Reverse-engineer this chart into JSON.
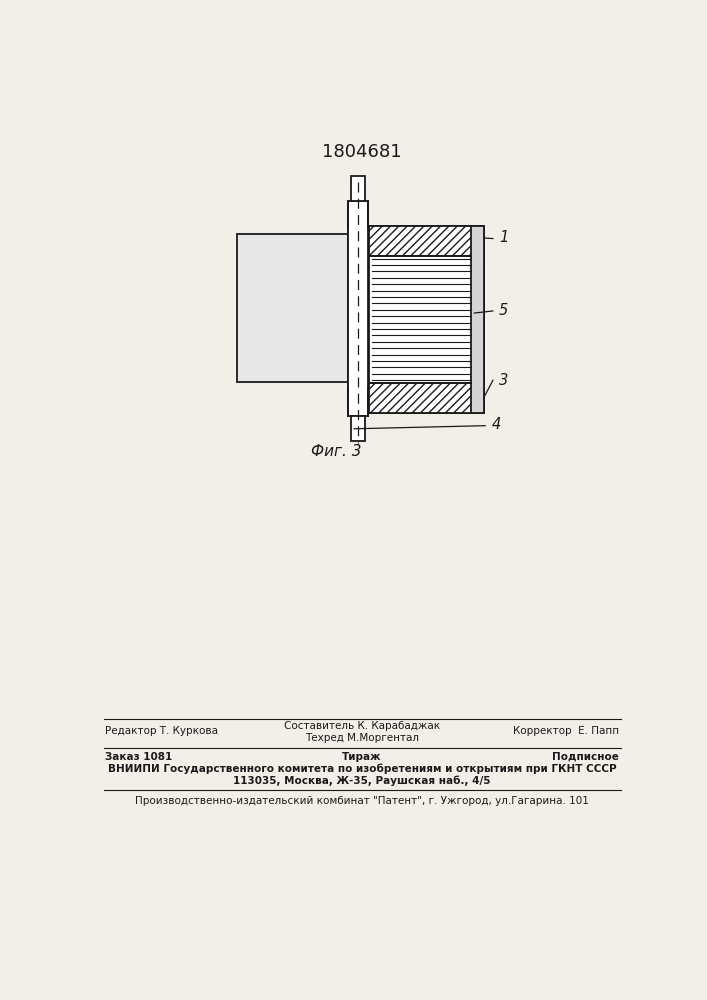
{
  "title": "1804681",
  "fig_label": "Фиг. 3",
  "background_color": "#f2efe9",
  "line_color": "#1a1a1a",
  "footer": {
    "line1_left": "Редактор Т. Куркова",
    "line1_center": "Составитель К. Карабаджак",
    "line1_right": "Корректор  Е. Папп",
    "line2_center": "Техред М.Моргентал",
    "line3_left": "Заказ 1081",
    "line3_center": "Тираж",
    "line3_right": "Подписное",
    "line4": "ВНИИПИ Государственного комитета по изобретениям и открытиям при ГКНТ СССР",
    "line5": "113035, Москва, Ж-35, Раушская наб., 4/5",
    "line6": "Производственно-издательский комбинат \"Патент\", г. Ужгород, ул.Гагарина. 101"
  }
}
